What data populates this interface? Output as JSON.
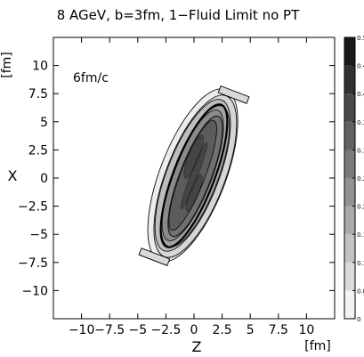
{
  "chart_data": {
    "type": "heatmap",
    "title": "8 AGeV, b=3fm, 1−Fluid Limit no PT",
    "annotation": "6fm/c",
    "xlabel": "Z",
    "ylabel": "X",
    "x_unit": "[fm]",
    "y_unit": "[fm]",
    "xlim": [
      -12.5,
      12.5
    ],
    "ylim": [
      -12.5,
      12.5
    ],
    "x_ticks": [
      {
        "v": -10,
        "label": "−10"
      },
      {
        "v": -7.5,
        "label": "−7.5"
      },
      {
        "v": -5,
        "label": "−5"
      },
      {
        "v": -2.5,
        "label": "−2.5"
      },
      {
        "v": 0,
        "label": "0"
      },
      {
        "v": 2.5,
        "label": "2.5"
      },
      {
        "v": 5,
        "label": "5"
      },
      {
        "v": 7.5,
        "label": "7.5"
      },
      {
        "v": 10,
        "label": "10"
      }
    ],
    "y_ticks": [
      {
        "v": 10,
        "label": "10"
      },
      {
        "v": 7.5,
        "label": "7.5"
      },
      {
        "v": 5,
        "label": "5"
      },
      {
        "v": 2.5,
        "label": "2.5"
      },
      {
        "v": 0,
        "label": "0"
      },
      {
        "v": -2.5,
        "label": "−2.5"
      },
      {
        "v": -5,
        "label": "−5"
      },
      {
        "v": -7.5,
        "label": "−7.5"
      },
      {
        "v": -10,
        "label": "−10"
      }
    ],
    "colorbar": {
      "min": 0,
      "max": 0.5,
      "ticks": [
        "0",
        "0.05",
        "0.1",
        "0.15",
        "0.2",
        "0.25",
        "0.3",
        "0.35",
        "0.4",
        "0.45",
        "0.5"
      ],
      "low_color": "#ffffff",
      "high_color": "#000000"
    },
    "contour_levels": [
      0.05,
      0.1,
      0.15,
      0.2,
      0.25,
      0.3,
      0.35
    ],
    "grid": false
  }
}
